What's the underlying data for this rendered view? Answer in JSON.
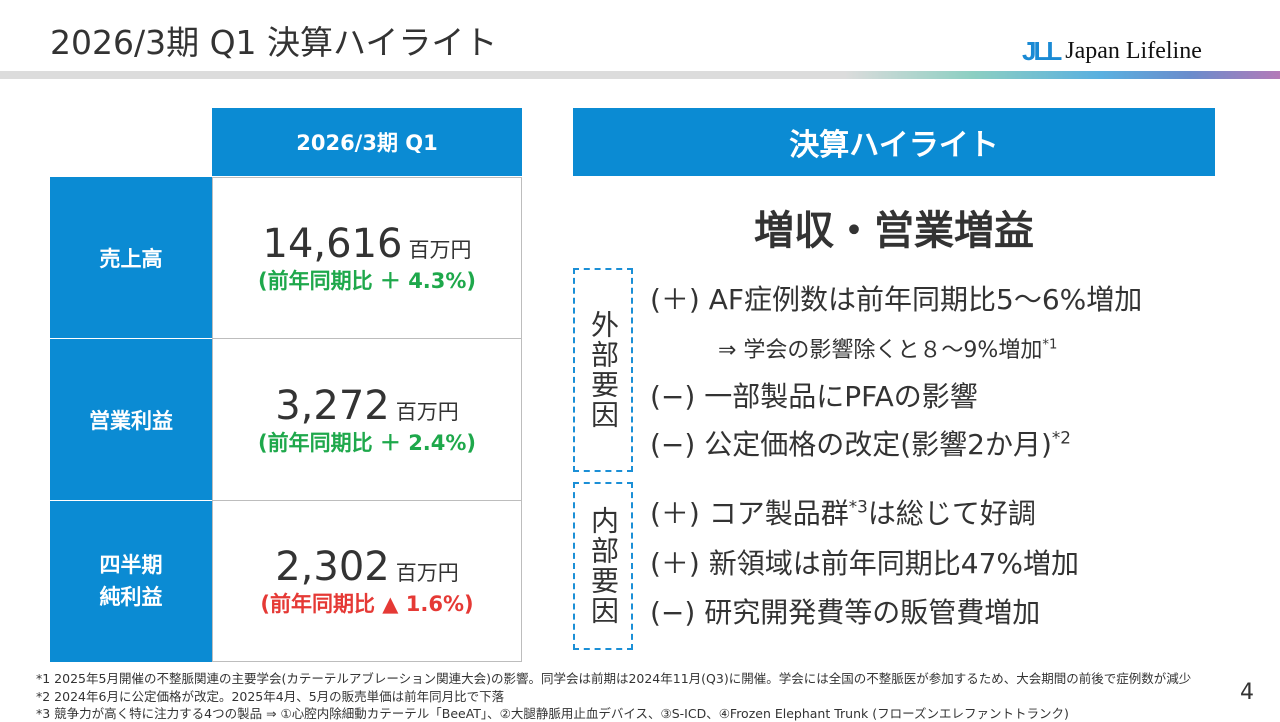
{
  "header": {
    "title": "2026/3期 Q1 決算ハイライト",
    "logo_mark": "JLL",
    "logo_text": "Japan Lifeline",
    "gradient_colors": [
      "#dcdcdc",
      "#8ccfc2",
      "#5ab0e0",
      "#b47ab8"
    ]
  },
  "table": {
    "column_header": "2026/3期 Q1",
    "rows": [
      {
        "label": "売上高",
        "value": "14,616",
        "unit": "百万円",
        "change": "(前年同期比 ＋ 4.3%)",
        "change_color": "#1ea84b"
      },
      {
        "label": "営業利益",
        "value": "3,272",
        "unit": "百万円",
        "change": "(前年同期比 ＋ 2.4%)",
        "change_color": "#1ea84b"
      },
      {
        "label": "四半期\n純利益",
        "value": "2,302",
        "unit": "百万円",
        "change": "(前年同期比 ▲ 1.6%)",
        "change_color": "#e53935"
      }
    ]
  },
  "highlight": {
    "header": "決算ハイライト",
    "headline": "増収・営業増益",
    "external": {
      "label": "外部要因",
      "items": [
        "(＋) AF症例数は前年同期比5～6%増加",
        "⇒ 学会の影響除くと８～9%増加",
        "(−) 一部製品にPFAの影響",
        "(−) 公定価格の改定(影響2か月)"
      ],
      "sup": {
        "1": "*1",
        "3": "*2"
      }
    },
    "internal": {
      "label": "内部要因",
      "items": [
        "(＋) コア製品群",
        "(＋) 新領域は前年同期比47%増加",
        "(−) 研究開発費等の販管費増加"
      ],
      "item0_sup": "*3",
      "item0_tail": "は総じて好調"
    }
  },
  "footnotes": [
    "*1 2025年5月開催の不整脈関連の主要学会(カテーテルアブレーション関連大会)の影響。同学会は前期は2024年11月(Q3)に開催。学会には全国の不整脈医が参加するため、大会期間の前後で症例数が減少",
    "*2 2024年6月に公定価格が改定。2025年4月、5月の販売単価は前年同月比で下落",
    "*3 競争力が高く特に注力する4つの製品 ⇒ ①心腔内除細動カテーテル「BeeAT」、②大腿静脈用止血デバイス、③S-ICD、④Frozen Elephant Trunk (フローズンエレファントトランク)"
  ],
  "page_number": "4"
}
